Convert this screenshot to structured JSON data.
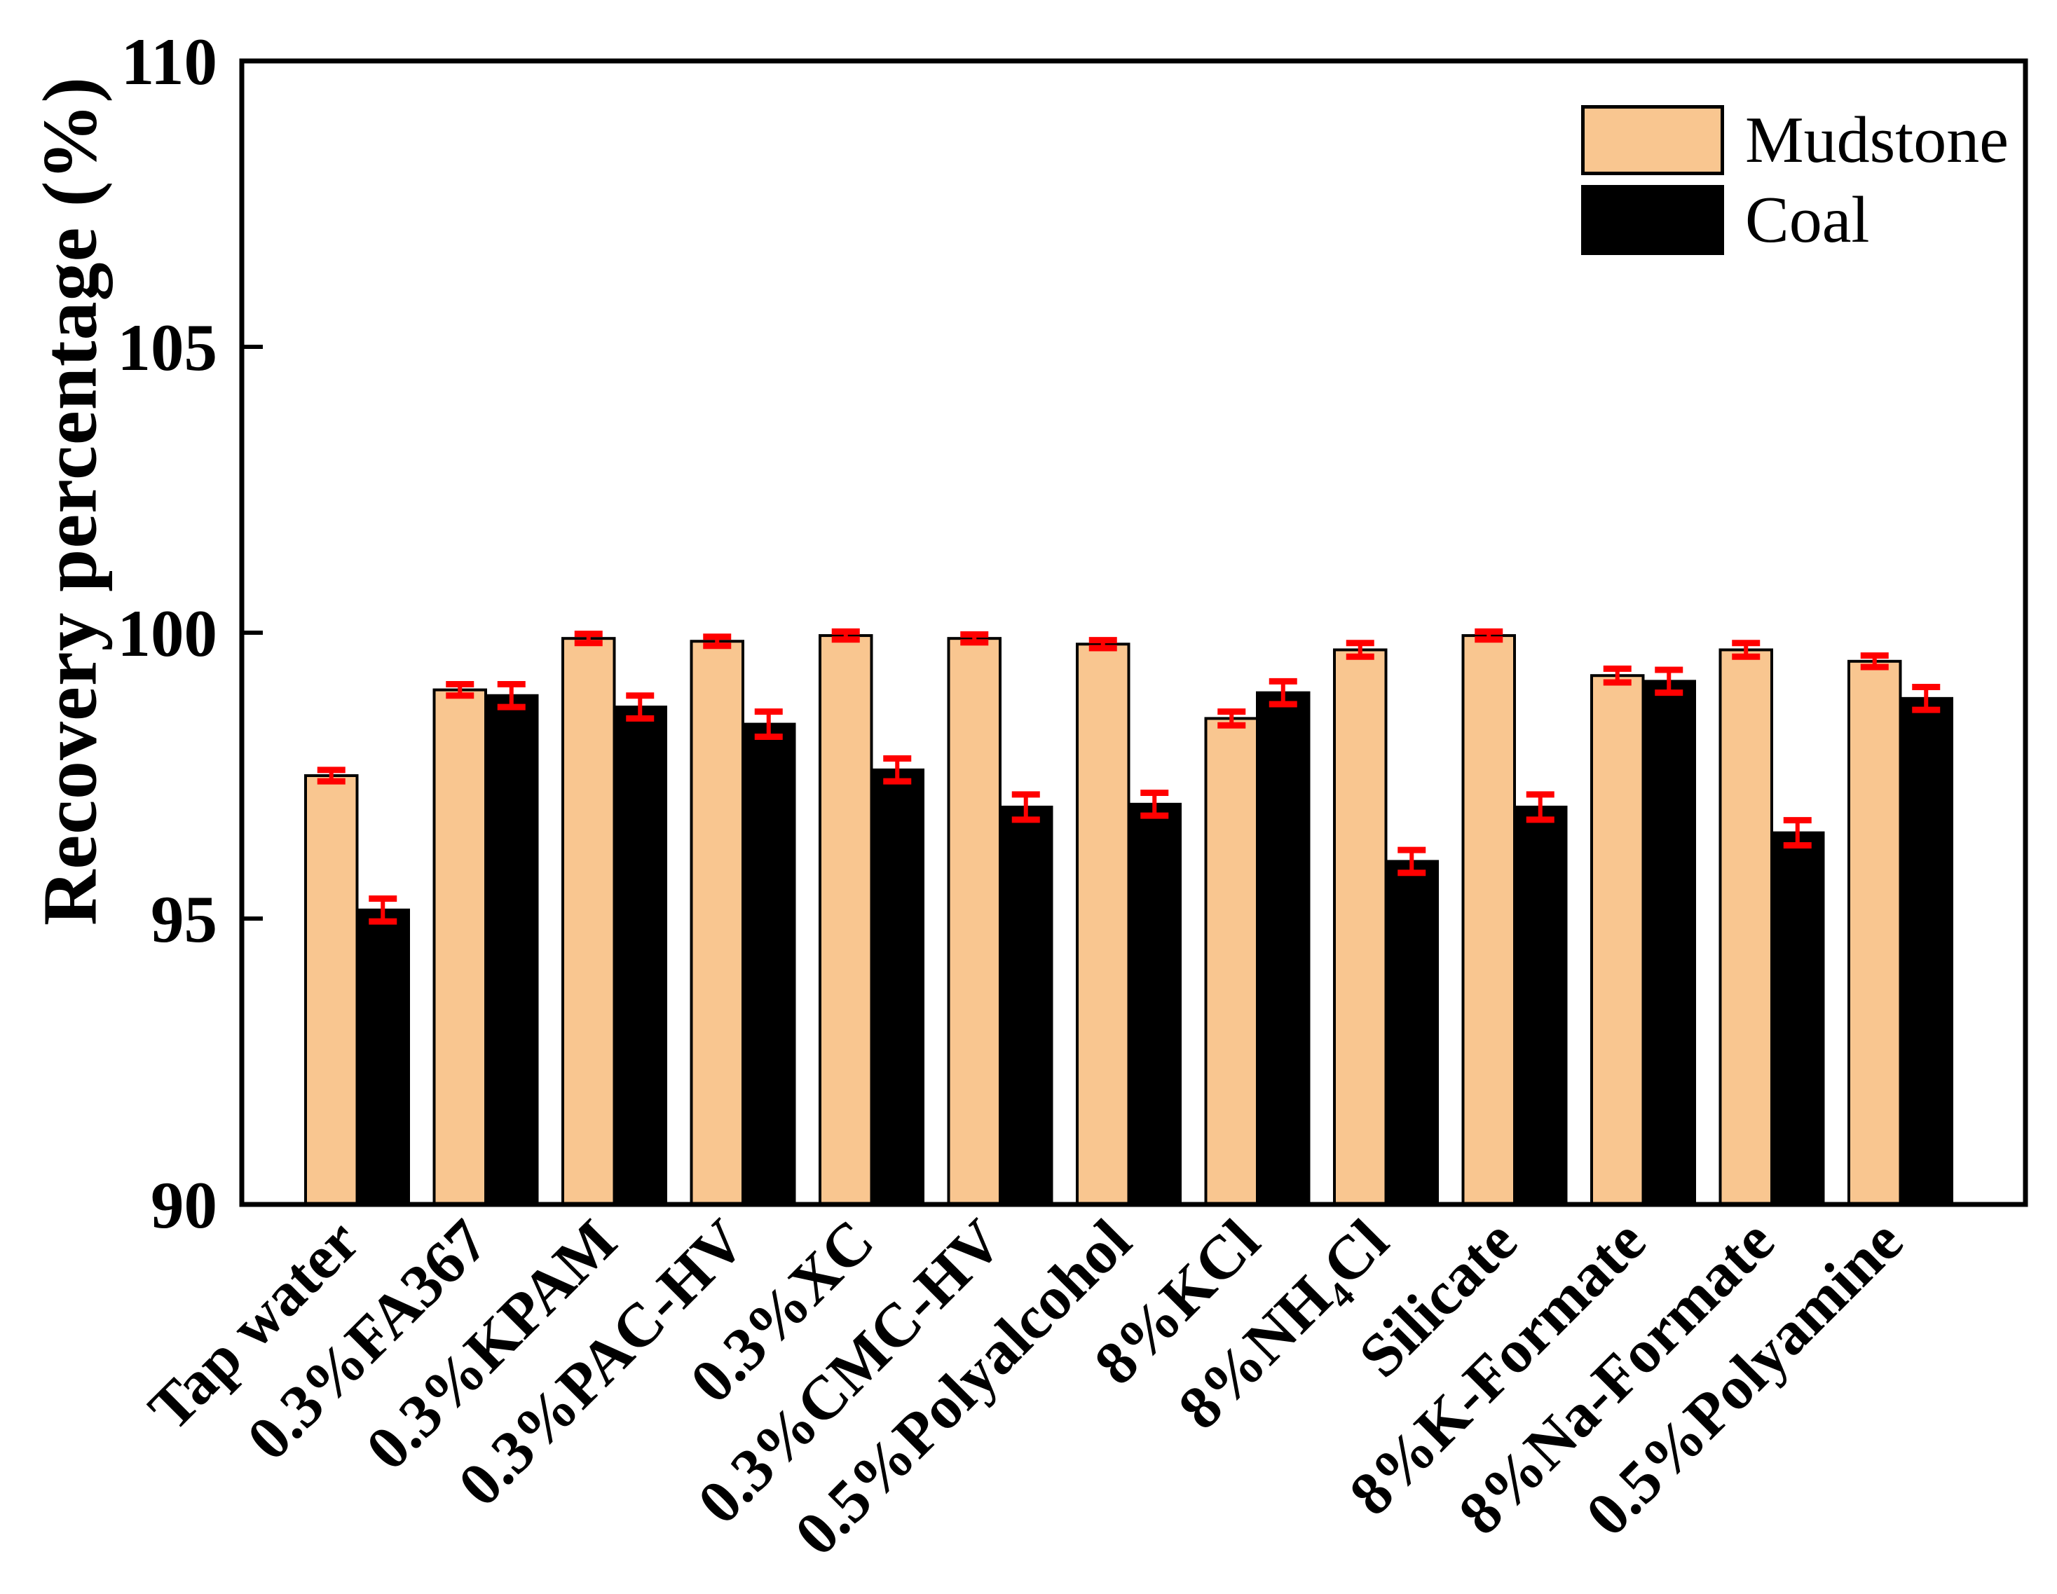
{
  "figure": {
    "background": "#ffffff",
    "text_color": "#000000"
  },
  "chart_data": {
    "type": "bar",
    "title": "",
    "xlabel": "",
    "ylabel": "Recovery percentage (%)",
    "ylim": [
      90,
      110
    ],
    "yticks": [
      90,
      95,
      100,
      105,
      110
    ],
    "grid": false,
    "legend_position": "top-right",
    "error_bar_color": "#FF0000",
    "axis_color": "#000000",
    "categories": [
      "Tap water",
      "0.3%FA367",
      "0.3%KPAM",
      "0.3%PAC-HV",
      "0.3%XC",
      "0.3%CMC-HV",
      "0.5%Polyalcohol",
      "8%KCl",
      "8%NH₄Cl",
      "Silicate",
      "8%K-Formate",
      "8%Na-Formate",
      "0.5%Polyamine"
    ],
    "series": [
      {
        "name": "Mudstone",
        "color": "#F9C690",
        "outline": "#000000",
        "values": [
          97.5,
          99.0,
          99.9,
          99.85,
          99.95,
          99.9,
          99.8,
          98.5,
          99.7,
          99.95,
          99.25,
          99.7,
          99.5
        ],
        "errors": [
          0.1,
          0.1,
          0.08,
          0.08,
          0.07,
          0.07,
          0.07,
          0.12,
          0.12,
          0.07,
          0.12,
          0.12,
          0.1
        ]
      },
      {
        "name": "Coal",
        "color": "#000000",
        "outline": "#000000",
        "values": [
          95.15,
          98.9,
          98.7,
          98.4,
          97.6,
          96.95,
          97.0,
          98.95,
          96.0,
          96.95,
          99.15,
          96.5,
          98.85
        ],
        "errors": [
          0.2,
          0.2,
          0.2,
          0.22,
          0.2,
          0.22,
          0.2,
          0.2,
          0.2,
          0.22,
          0.2,
          0.22,
          0.2
        ]
      }
    ]
  }
}
